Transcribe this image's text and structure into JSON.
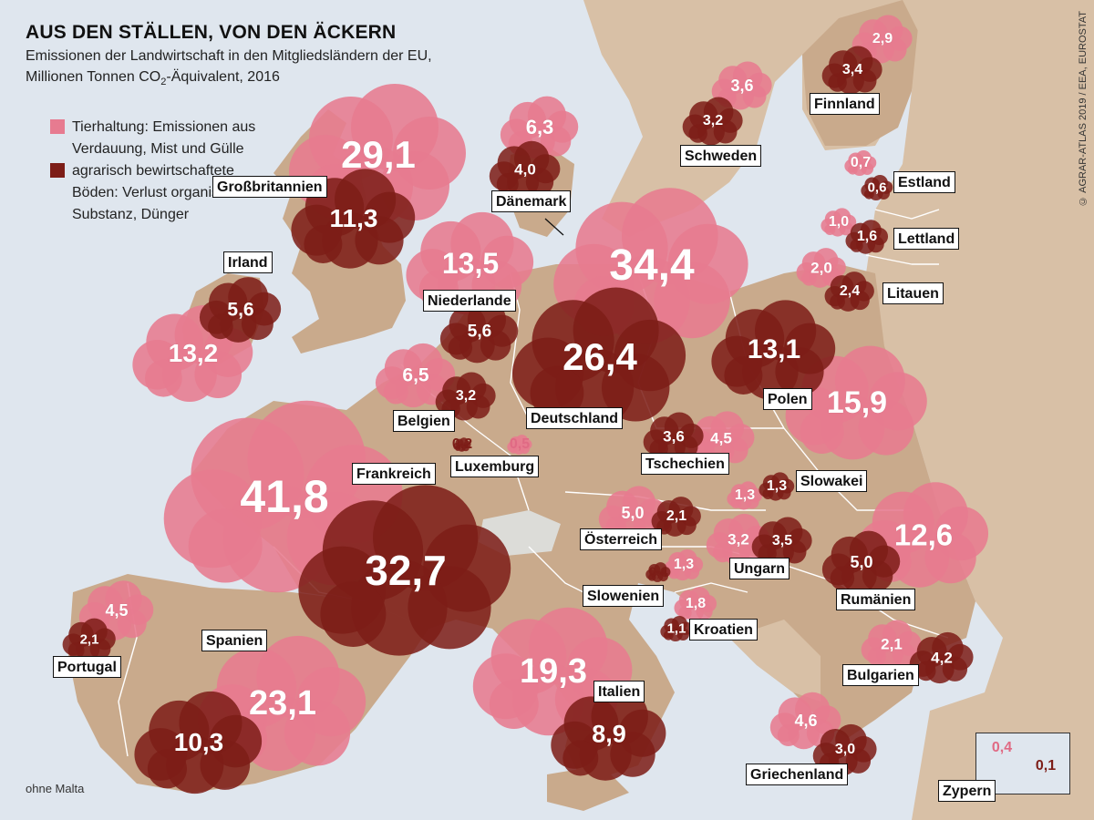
{
  "title": "AUS DEN STÄLLEN, VON DEN ÄCKERN",
  "subtitle_line1": "Emissionen der Landwirtschaft in den Mitgliedsländern der EU,",
  "subtitle_line2_pre": "Millionen Tonnen CO",
  "subtitle_line2_sub": "2",
  "subtitle_line2_post": "-Äquivalent, 2016",
  "legend": {
    "tierhaltung": "Tierhaltung: Emissionen aus Verdauung, Mist und Gülle",
    "boeden": "agrarisch bewirtschaftete Böden: Verlust organischer Substanz, Dünger"
  },
  "note": "ohne Malta",
  "source": "© AGRAR-ATLAS 2019 / EEA, EUROSTAT",
  "colors": {
    "tierhaltung": "#e77b90",
    "boeden": "#7d1d17",
    "land": "#d8c0a6",
    "eu_land": "#c9aa8c",
    "sea": "#dfe6ee"
  },
  "countries": [
    {
      "id": "grossbritannien",
      "name": "Großbritannien",
      "tierhaltung": "29,1",
      "boeden": "11,3"
    },
    {
      "id": "irland",
      "name": "Irland",
      "tierhaltung": "13,2",
      "boeden": "5,6"
    },
    {
      "id": "frankreich",
      "name": "Frankreich",
      "tierhaltung": "41,8",
      "boeden": "32,7"
    },
    {
      "id": "spanien",
      "name": "Spanien",
      "tierhaltung": "23,1",
      "boeden": "10,3"
    },
    {
      "id": "portugal",
      "name": "Portugal",
      "tierhaltung": "4,5",
      "boeden": "2,1"
    },
    {
      "id": "belgien",
      "name": "Belgien",
      "tierhaltung": "6,5",
      "boeden": "3,2"
    },
    {
      "id": "luxemburg",
      "name": "Luxemburg",
      "tierhaltung": "0,5",
      "boeden": "0,2"
    },
    {
      "id": "niederlande",
      "name": "Niederlande",
      "tierhaltung": "13,5",
      "boeden": "5,6"
    },
    {
      "id": "daenemark",
      "name": "Dänemark",
      "tierhaltung": "6,3",
      "boeden": "4,0"
    },
    {
      "id": "deutschland",
      "name": "Deutschland",
      "tierhaltung": "34,4",
      "boeden": "26,4"
    },
    {
      "id": "schweden",
      "name": "Schweden",
      "tierhaltung": "3,6",
      "boeden": "3,2"
    },
    {
      "id": "finnland",
      "name": "Finnland",
      "tierhaltung": "2,9",
      "boeden": "3,4"
    },
    {
      "id": "estland",
      "name": "Estland",
      "tierhaltung": "0,7",
      "boeden": "0,6"
    },
    {
      "id": "lettland",
      "name": "Lettland",
      "tierhaltung": "1,0",
      "boeden": "1,6"
    },
    {
      "id": "litauen",
      "name": "Litauen",
      "tierhaltung": "2,0",
      "boeden": "2,4"
    },
    {
      "id": "polen",
      "name": "Polen",
      "tierhaltung": "15,9",
      "boeden": "13,1"
    },
    {
      "id": "tschechien",
      "name": "Tschechien",
      "tierhaltung": "4,5",
      "boeden": "3,6"
    },
    {
      "id": "slowakei",
      "name": "Slowakei",
      "tierhaltung": "1,3",
      "boeden": "1,3"
    },
    {
      "id": "oesterreich",
      "name": "Österreich",
      "tierhaltung": "5,0",
      "boeden": "2,1"
    },
    {
      "id": "ungarn",
      "name": "Ungarn",
      "tierhaltung": "3,2",
      "boeden": "3,5"
    },
    {
      "id": "slowenien",
      "name": "Slowenien",
      "tierhaltung": "1,3",
      "boeden": "0,4"
    },
    {
      "id": "kroatien",
      "name": "Kroatien",
      "tierhaltung": "1,8",
      "boeden": "1,1"
    },
    {
      "id": "rumaenien",
      "name": "Rumänien",
      "tierhaltung": "12,6",
      "boeden": "5,0"
    },
    {
      "id": "bulgarien",
      "name": "Bulgarien",
      "tierhaltung": "2,1",
      "boeden": "4,2"
    },
    {
      "id": "italien",
      "name": "Italien",
      "tierhaltung": "19,3",
      "boeden": "8,9"
    },
    {
      "id": "griechenland",
      "name": "Griechenland",
      "tierhaltung": "4,6",
      "boeden": "3,0"
    },
    {
      "id": "zypern",
      "name": "Zypern",
      "tierhaltung": "0,4",
      "boeden": "0,1"
    }
  ]
}
